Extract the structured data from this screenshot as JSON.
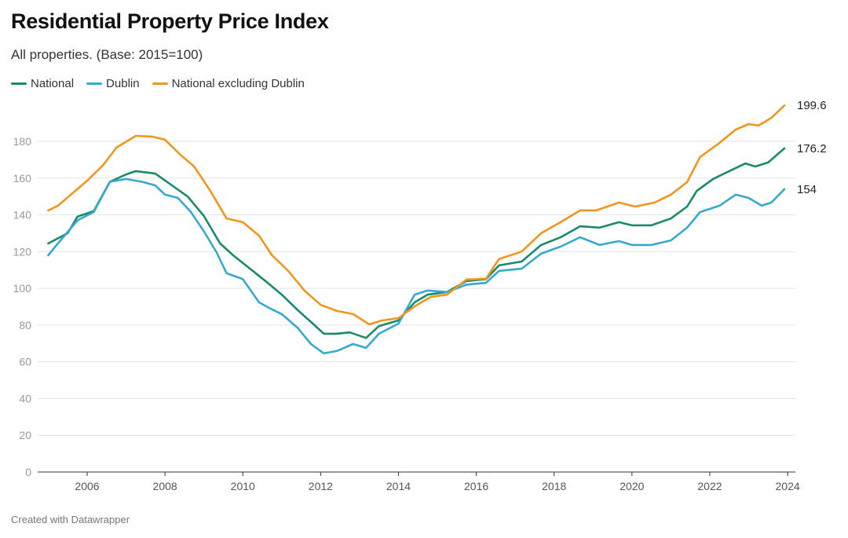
{
  "chart_data": {
    "type": "line",
    "title": "Residential Property Price Index",
    "subtitle": "All properties. (Base: 2015=100)",
    "xlabel": "",
    "ylabel": "",
    "ylim": [
      0,
      200
    ],
    "xlim": [
      "2005-01",
      "2024-01"
    ],
    "y_ticks": [
      "0",
      "20",
      "40",
      "60",
      "80",
      "100",
      "120",
      "140",
      "160",
      "180"
    ],
    "x_ticks": [
      "2006",
      "2008",
      "2010",
      "2012",
      "2014",
      "2016",
      "2018",
      "2020",
      "2022",
      "2024"
    ],
    "grid": true,
    "legend_position": "top-left",
    "series": [
      {
        "name": "National",
        "color": "#1b8a6b",
        "end_label": "176.2",
        "points": [
          [
            "2005-01",
            124.4
          ],
          [
            "2005-07",
            130
          ],
          [
            "2005-10",
            139
          ],
          [
            "2006-03",
            142
          ],
          [
            "2006-08",
            158
          ],
          [
            "2007-01",
            162
          ],
          [
            "2007-04",
            163.8
          ],
          [
            "2007-10",
            162.5
          ],
          [
            "2008-04",
            155
          ],
          [
            "2008-08",
            150
          ],
          [
            "2009-01",
            139.4
          ],
          [
            "2009-06",
            124.4
          ],
          [
            "2009-10",
            118
          ],
          [
            "2010-03",
            111
          ],
          [
            "2010-08",
            104
          ],
          [
            "2011-01",
            96.6
          ],
          [
            "2011-06",
            88
          ],
          [
            "2011-10",
            81.7
          ],
          [
            "2012-02",
            75.3
          ],
          [
            "2012-06",
            75.3
          ],
          [
            "2012-10",
            76
          ],
          [
            "2013-03",
            73
          ],
          [
            "2013-07",
            79.5
          ],
          [
            "2014-01",
            82.5
          ],
          [
            "2014-06",
            92.4
          ],
          [
            "2014-10",
            96.6
          ],
          [
            "2015-04",
            98
          ],
          [
            "2015-10",
            104
          ],
          [
            "2016-04",
            105
          ],
          [
            "2016-08",
            112.5
          ],
          [
            "2017-03",
            114.6
          ],
          [
            "2017-09",
            123.6
          ],
          [
            "2018-03",
            127.8
          ],
          [
            "2018-09",
            133.8
          ],
          [
            "2019-03",
            133
          ],
          [
            "2019-09",
            136
          ],
          [
            "2020-01",
            134.3
          ],
          [
            "2020-07",
            134.3
          ],
          [
            "2021-01",
            138
          ],
          [
            "2021-06",
            144.5
          ],
          [
            "2021-09",
            153
          ],
          [
            "2022-02",
            159.5
          ],
          [
            "2022-07",
            163.8
          ],
          [
            "2022-12",
            168
          ],
          [
            "2023-03",
            166.3
          ],
          [
            "2023-07",
            168.5
          ],
          [
            "2023-12",
            176.2
          ]
        ]
      },
      {
        "name": "Dublin",
        "color": "#36a9d1",
        "end_label": "154",
        "points": [
          [
            "2005-01",
            118
          ],
          [
            "2005-04",
            124.4
          ],
          [
            "2005-10",
            137
          ],
          [
            "2006-03",
            141.5
          ],
          [
            "2006-08",
            158
          ],
          [
            "2007-01",
            159.5
          ],
          [
            "2007-06",
            158
          ],
          [
            "2007-10",
            156
          ],
          [
            "2008-01",
            151
          ],
          [
            "2008-05",
            149.2
          ],
          [
            "2008-09",
            141.5
          ],
          [
            "2009-01",
            131
          ],
          [
            "2009-05",
            119.3
          ],
          [
            "2009-08",
            108.2
          ],
          [
            "2010-01",
            105
          ],
          [
            "2010-06",
            92.4
          ],
          [
            "2010-09",
            89.4
          ],
          [
            "2011-01",
            86
          ],
          [
            "2011-06",
            78.3
          ],
          [
            "2011-10",
            69.7
          ],
          [
            "2012-02",
            64.6
          ],
          [
            "2012-06",
            65.9
          ],
          [
            "2012-11",
            69.7
          ],
          [
            "2013-03",
            67.6
          ],
          [
            "2013-07",
            75.3
          ],
          [
            "2014-01",
            80.8
          ],
          [
            "2014-06",
            96.6
          ],
          [
            "2014-10",
            98.8
          ],
          [
            "2015-04",
            98
          ],
          [
            "2015-10",
            102
          ],
          [
            "2016-04",
            103
          ],
          [
            "2016-08",
            109.5
          ],
          [
            "2017-03",
            110.7
          ],
          [
            "2017-09",
            118.9
          ],
          [
            "2018-03",
            122.7
          ],
          [
            "2018-09",
            127.8
          ],
          [
            "2019-03",
            123.6
          ],
          [
            "2019-09",
            125.7
          ],
          [
            "2020-01",
            123.6
          ],
          [
            "2020-07",
            123.6
          ],
          [
            "2021-01",
            126.1
          ],
          [
            "2021-06",
            133
          ],
          [
            "2021-10",
            141.5
          ],
          [
            "2022-04",
            145
          ],
          [
            "2022-09",
            151
          ],
          [
            "2023-01",
            149.2
          ],
          [
            "2023-05",
            145
          ],
          [
            "2023-08",
            146.7
          ],
          [
            "2023-12",
            154
          ]
        ]
      },
      {
        "name": "National excluding Dublin",
        "color": "#f0961f",
        "end_label": "199.6",
        "points": [
          [
            "2005-01",
            142.4
          ],
          [
            "2005-04",
            145
          ],
          [
            "2005-08",
            151
          ],
          [
            "2006-01",
            158.6
          ],
          [
            "2006-06",
            167.2
          ],
          [
            "2006-10",
            176.6
          ],
          [
            "2007-04",
            183
          ],
          [
            "2007-09",
            182.6
          ],
          [
            "2008-01",
            180.9
          ],
          [
            "2008-06",
            172.3
          ],
          [
            "2008-10",
            166.3
          ],
          [
            "2009-03",
            153
          ],
          [
            "2009-08",
            138
          ],
          [
            "2010-01",
            136
          ],
          [
            "2010-06",
            128.7
          ],
          [
            "2010-10",
            118
          ],
          [
            "2011-03",
            109.5
          ],
          [
            "2011-08",
            98.8
          ],
          [
            "2012-01",
            91
          ],
          [
            "2012-06",
            87.7
          ],
          [
            "2012-11",
            86
          ],
          [
            "2013-04",
            80.4
          ],
          [
            "2013-08",
            82.5
          ],
          [
            "2014-01",
            83.8
          ],
          [
            "2014-06",
            90.2
          ],
          [
            "2014-11",
            95.4
          ],
          [
            "2015-04",
            96.6
          ],
          [
            "2015-10",
            104.8
          ],
          [
            "2016-04",
            105.2
          ],
          [
            "2016-08",
            115.9
          ],
          [
            "2017-03",
            120
          ],
          [
            "2017-09",
            130
          ],
          [
            "2018-03",
            136
          ],
          [
            "2018-09",
            142.4
          ],
          [
            "2019-02",
            142.4
          ],
          [
            "2019-09",
            146.7
          ],
          [
            "2020-02",
            144.5
          ],
          [
            "2020-08",
            146.7
          ],
          [
            "2021-01",
            151
          ],
          [
            "2021-06",
            157.8
          ],
          [
            "2021-10",
            171.5
          ],
          [
            "2022-04",
            179.2
          ],
          [
            "2022-09",
            186.4
          ],
          [
            "2023-01",
            189.4
          ],
          [
            "2023-04",
            188.6
          ],
          [
            "2023-08",
            192.8
          ],
          [
            "2023-12",
            199.6
          ]
        ]
      }
    ]
  },
  "footer": "Created with Datawrapper"
}
